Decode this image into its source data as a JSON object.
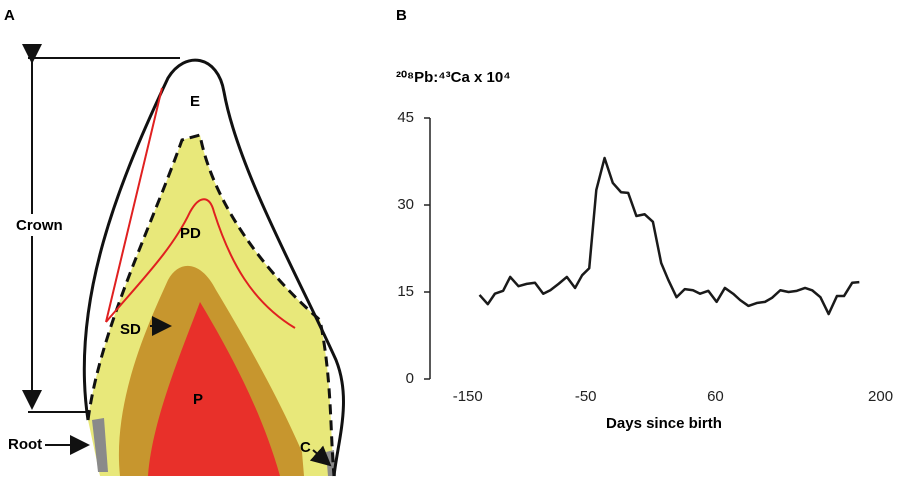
{
  "panels": {
    "a": "A",
    "b": "B"
  },
  "diagram": {
    "enamel": "E",
    "primary_dentine": "PD",
    "secondary_dentine": "SD",
    "pulp": "P",
    "cementum": "C",
    "crown": "Crown",
    "root": "Root"
  },
  "chart_data": {
    "type": "line",
    "title": "²⁰⁸Pb:⁴³Ca x 10⁴",
    "x_label": "Days since birth",
    "x": [
      -140,
      -133,
      -127,
      -120,
      -114,
      -107,
      -100,
      -93,
      -86,
      -80,
      -73,
      -66,
      -59,
      -53,
      -47,
      -41,
      -34,
      -27,
      -20,
      -14,
      -7,
      0,
      7,
      14,
      20,
      27,
      34,
      41,
      47,
      54,
      61,
      68,
      75,
      81,
      88,
      95,
      102,
      108,
      115,
      122,
      129,
      136,
      142,
      149,
      156,
      163,
      169,
      176,
      182
    ],
    "series": [
      {
        "color": "#1a1a1a",
        "values": [
          14.5,
          12.9,
          14.7,
          15.2,
          17.6,
          16.0,
          16.4,
          16.6,
          14.7,
          15.3,
          16.4,
          17.6,
          15.7,
          17.9,
          19.1,
          32.6,
          38.1,
          33.8,
          32.2,
          32.1,
          28.1,
          28.4,
          27.1,
          20.0,
          17.1,
          14.1,
          15.5,
          15.3,
          14.7,
          15.2,
          13.3,
          15.7,
          14.7,
          13.6,
          12.6,
          13.1,
          13.3,
          14.0,
          15.3,
          15.0,
          15.2,
          15.7,
          15.3,
          14.1,
          11.2,
          14.3,
          14.3,
          16.6,
          16.7
        ]
      }
    ],
    "xlim": [
      -182,
      208
    ],
    "xticks": [
      -150,
      -50,
      60,
      200
    ],
    "ylim": [
      0,
      45
    ],
    "yticks": [
      0,
      15,
      30,
      45
    ]
  }
}
